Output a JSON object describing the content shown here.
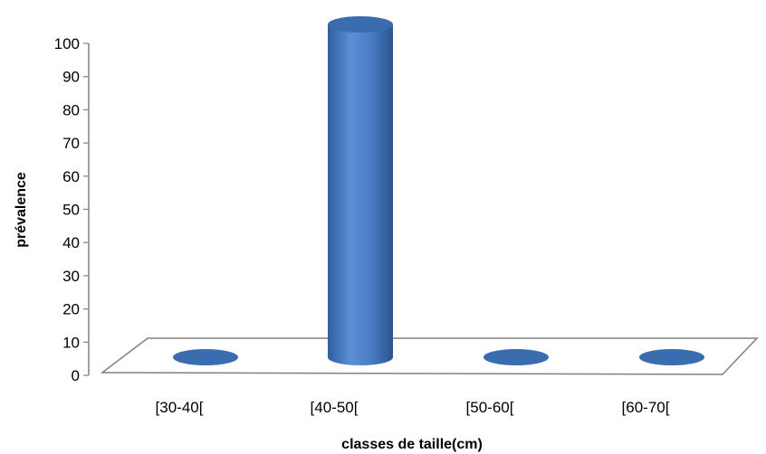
{
  "chart_data": {
    "type": "bar",
    "style": "3d-cylinder",
    "categories": [
      "[30-40[",
      "[40-50[",
      "[50-60[",
      "[60-70["
    ],
    "values": [
      0,
      100,
      0,
      0
    ],
    "xlabel": "classes de taille(cm)",
    "ylabel": "prévalence",
    "ylim": [
      0,
      100
    ],
    "yticks": [
      0,
      10,
      20,
      30,
      40,
      50,
      60,
      70,
      80,
      90,
      100
    ],
    "grid": false,
    "legend": "none",
    "colors": {
      "bar_body": "#4a7ec4",
      "bar_dark": "#2d5a96",
      "bar_top": "#3a6db0",
      "axis": "#808080"
    }
  }
}
